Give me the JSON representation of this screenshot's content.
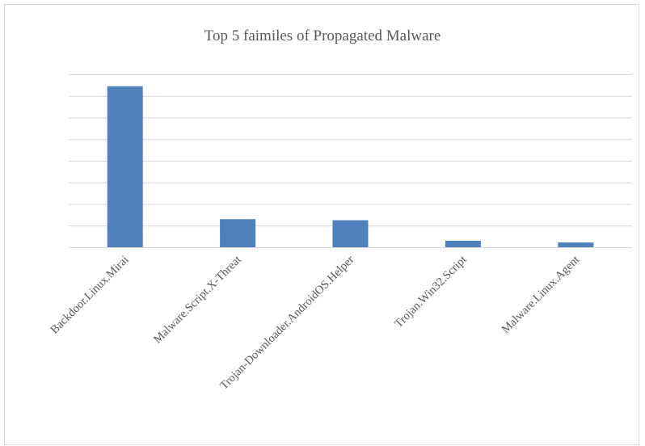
{
  "chart_data": {
    "type": "bar",
    "title": "Top 5 faimiles of Propagated Malware",
    "xlabel": "",
    "ylabel": "",
    "categories": [
      "Backdoor.Linux.Mirai",
      "Malware.Script.X-Threat",
      "Trojan-Downloader.AndroidOS.Helper",
      "Trojan.Win32.Script",
      "Malware.Linux.Agent"
    ],
    "values": [
      7.45,
      1.3,
      1.25,
      0.3,
      0.22
    ],
    "ylim": [
      0,
      8
    ],
    "y_tick_count": 8,
    "grid": true,
    "y_tick_labels_visible": false,
    "bar_color": "#4f81bd",
    "grid_color": "#d9d9d9"
  }
}
